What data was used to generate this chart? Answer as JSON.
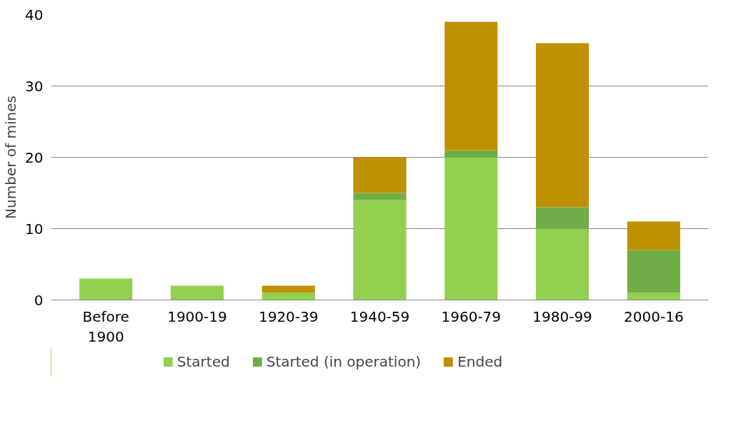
{
  "chart_data": {
    "type": "bar",
    "stacked": true,
    "ylabel": "Number of mines",
    "categories": [
      "Before\n1900",
      "1900-19",
      "1920-39",
      "1940-59",
      "1960-79",
      "1980-99",
      "2000-16"
    ],
    "series": [
      {
        "name": "Started",
        "color": "#92d050",
        "values": [
          3,
          2,
          1,
          14,
          20,
          10,
          1
        ]
      },
      {
        "name": "Started (in operation)",
        "color": "#70ad47",
        "values": [
          0,
          0,
          0,
          1,
          1,
          3,
          6
        ]
      },
      {
        "name": "Ended",
        "color": "#bf9000",
        "values": [
          0,
          0,
          1,
          5,
          18,
          23,
          4
        ]
      }
    ],
    "ylim": [
      0,
      40
    ],
    "yticks": [
      0,
      10,
      20,
      30,
      40
    ],
    "grid": "y",
    "legend": "bottom"
  }
}
